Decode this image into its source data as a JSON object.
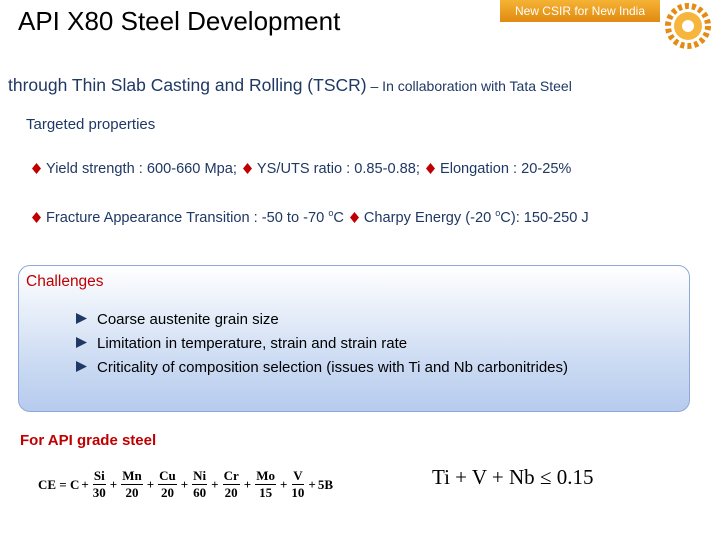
{
  "header": {
    "title": "API X80 Steel Development",
    "banner": "New CSIR for New India"
  },
  "subtitle": {
    "main": "through Thin Slab Casting and Rolling (TSCR)",
    "secondary": " – In collaboration with Tata Steel"
  },
  "properties": {
    "heading": "Targeted properties",
    "lines": [
      [
        [
          {
            "text": "Yield strength : 600-660 Mpa;"
          }
        ],
        [
          {
            "text": "YS/UTS ratio : 0.85-0.88;"
          }
        ],
        [
          {
            "text": "Elongation : 20-25%"
          }
        ]
      ],
      [
        [
          {
            "text": "Fracture Appearance Transition : -50 to -70 "
          },
          {
            "sup": "o"
          },
          {
            "text": "C"
          }
        ],
        [
          {
            "text": "Charpy Energy (-20 "
          },
          {
            "sup": "o"
          },
          {
            "text": "C): 150-250 J"
          }
        ]
      ]
    ]
  },
  "challenges": {
    "heading": "Challenges",
    "items": [
      "Coarse austenite grain size",
      "Limitation in temperature, strain and strain rate",
      "Criticality of composition selection (issues with Ti and Nb carbonitrides)"
    ]
  },
  "api_grade": {
    "heading": "For API grade steel",
    "ce_formula": {
      "lhs": "CE = C",
      "operator": "+",
      "terms": [
        {
          "num": "Si",
          "den": "30"
        },
        {
          "num": "Mn",
          "den": "20"
        },
        {
          "num": "Cu",
          "den": "20"
        },
        {
          "num": "Ni",
          "den": "60"
        },
        {
          "num": "Cr",
          "den": "20"
        },
        {
          "num": "Mo",
          "den": "15"
        },
        {
          "num": "V",
          "den": "10"
        }
      ],
      "tail": "5B"
    },
    "limit_formula": "Ti + V + Nb ≤ 0.15"
  }
}
